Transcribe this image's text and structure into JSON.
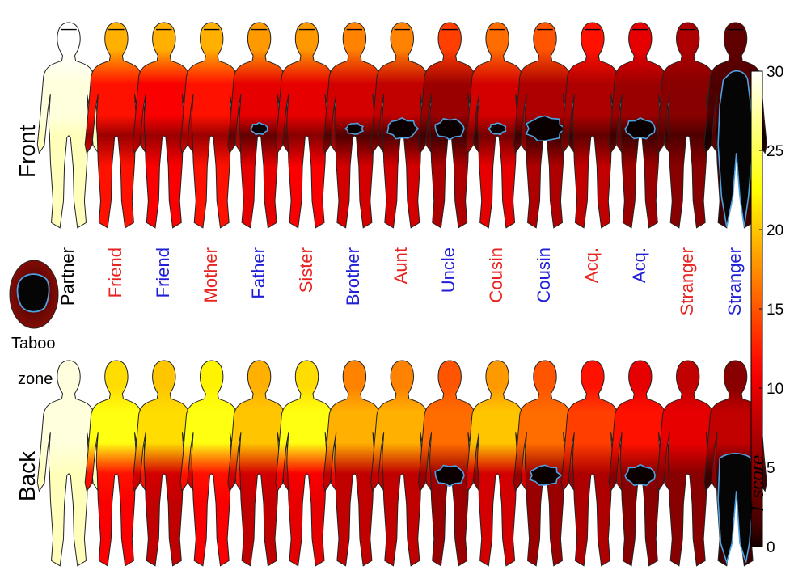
{
  "chart_data": {
    "type": "heatmap",
    "rows": [
      "Front",
      "Back"
    ],
    "columns": [
      {
        "label": "Partner",
        "label_color": "#000000"
      },
      {
        "label": "Friend",
        "label_color": "#e8231f"
      },
      {
        "label": "Friend",
        "label_color": "#1f1fd6"
      },
      {
        "label": "Mother",
        "label_color": "#e8231f"
      },
      {
        "label": "Father",
        "label_color": "#1f1fd6"
      },
      {
        "label": "Sister",
        "label_color": "#e8231f"
      },
      {
        "label": "Brother",
        "label_color": "#1f1fd6"
      },
      {
        "label": "Aunt",
        "label_color": "#e8231f"
      },
      {
        "label": "Uncle",
        "label_color": "#1f1fd6"
      },
      {
        "label": "Cousin",
        "label_color": "#e8231f"
      },
      {
        "label": "Cousin",
        "label_color": "#1f1fd6"
      },
      {
        "label": "Acq.",
        "label_color": "#e8231f"
      },
      {
        "label": "Acq.",
        "label_color": "#1f1fd6"
      },
      {
        "label": "Stranger",
        "label_color": "#e8231f"
      },
      {
        "label": "Stranger",
        "label_color": "#1f1fd6"
      }
    ],
    "values": {
      "front": {
        "head": [
          30,
          19,
          19,
          19,
          18,
          18,
          17,
          17,
          14,
          16,
          15,
          12,
          10,
          7,
          3
        ],
        "torso": [
          29,
          12,
          11,
          12,
          10,
          10,
          9,
          8,
          6,
          9,
          7,
          7,
          6,
          5,
          2
        ],
        "groin": [
          28,
          6,
          6,
          6,
          3,
          5,
          2,
          2,
          1,
          4,
          1,
          3,
          1,
          2,
          0
        ],
        "legs": [
          28,
          12,
          11,
          12,
          10,
          11,
          9,
          9,
          7,
          10,
          7,
          8,
          6,
          5,
          1
        ]
      },
      "back": {
        "head": [
          29,
          21,
          20,
          22,
          19,
          21,
          17,
          17,
          15,
          18,
          15,
          12,
          10,
          8,
          5
        ],
        "upper": [
          29,
          23,
          21,
          23,
          20,
          23,
          19,
          19,
          16,
          20,
          16,
          14,
          12,
          10,
          8
        ],
        "lower": [
          28,
          12,
          9,
          12,
          9,
          11,
          8,
          8,
          6,
          9,
          6,
          7,
          5,
          5,
          1
        ],
        "legs": [
          28,
          11,
          8,
          11,
          8,
          10,
          8,
          8,
          6,
          9,
          6,
          7,
          5,
          5,
          1
        ]
      }
    },
    "taboo_zone": {
      "front": [
        null,
        null,
        null,
        null,
        "small",
        null,
        "small",
        "medium",
        "medium",
        "small",
        "large",
        null,
        "medium",
        null,
        "full"
      ],
      "back": [
        null,
        null,
        null,
        null,
        null,
        null,
        null,
        null,
        "medium",
        null,
        "medium",
        null,
        "medium",
        null,
        "full"
      ]
    },
    "colorbar": {
      "label": "T score",
      "min": 0,
      "max": 30,
      "ticks": [
        0,
        5,
        10,
        15,
        20,
        25,
        30
      ],
      "colormap": "hot"
    },
    "legend": {
      "text_top": "Taboo",
      "text_bottom": "zone"
    },
    "outline_color": "#4fa0e0"
  }
}
